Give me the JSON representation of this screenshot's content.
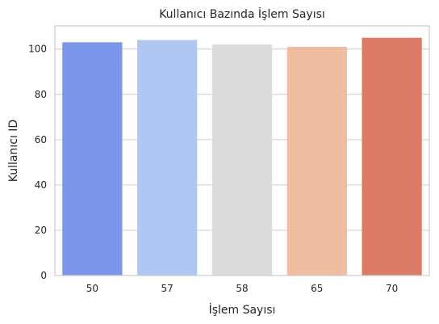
{
  "chart_data": {
    "type": "bar",
    "title": "Kullanıcı Bazında İşlem Sayısı",
    "xlabel": "İşlem Sayısı",
    "ylabel": "Kullanıcı ID",
    "categories": [
      "50",
      "57",
      "58",
      "65",
      "70"
    ],
    "values": [
      103,
      104,
      102,
      101,
      105
    ],
    "ylim": [
      0,
      110.25
    ],
    "yticks": [
      "0",
      "20",
      "40",
      "60",
      "80",
      "100"
    ],
    "colors": [
      "#7b96ea",
      "#b0c7f3",
      "#dcdcdc",
      "#f1bda1",
      "#dc7b65"
    ],
    "grid": "horizontal",
    "legend": "none"
  }
}
